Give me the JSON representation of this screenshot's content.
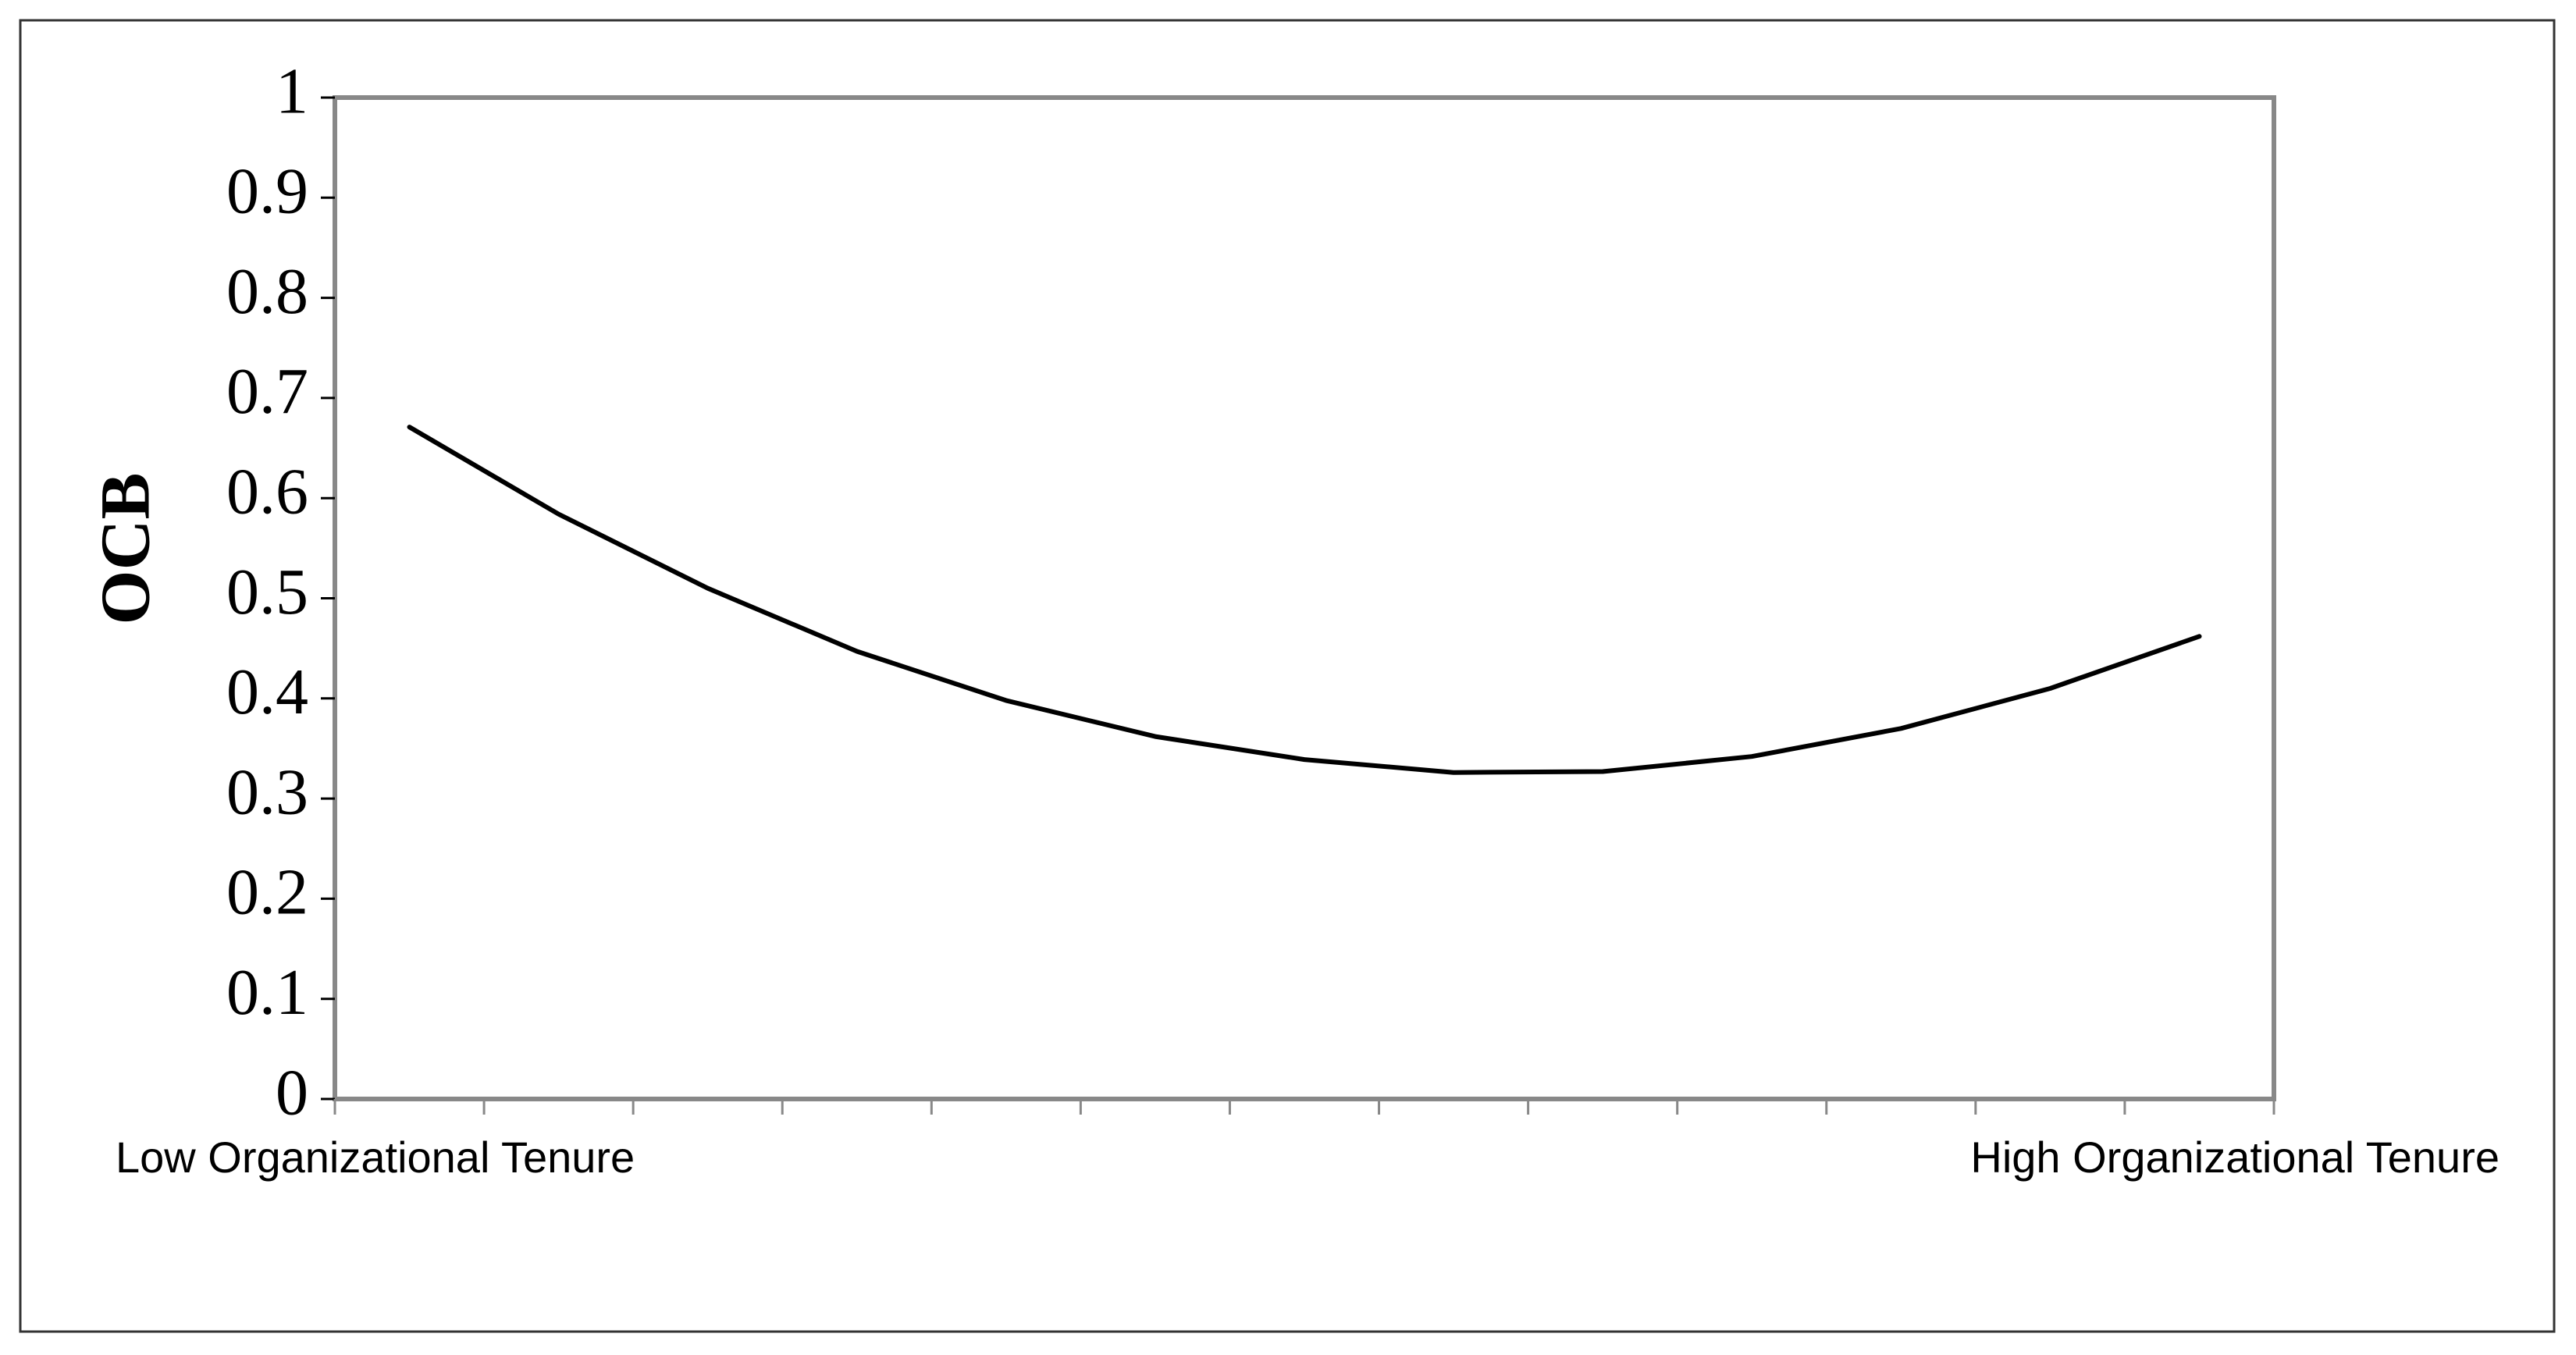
{
  "chart_data": {
    "type": "line",
    "y_label": "OCB",
    "categories": [
      "Low Organizational Tenure",
      null,
      null,
      null,
      null,
      null,
      null,
      null,
      null,
      null,
      null,
      null,
      "High Organizational Tenure"
    ],
    "series": [
      {
        "color": "#000000",
        "values": [
          0.671,
          0.584,
          0.51,
          0.447,
          0.398,
          0.362,
          0.339,
          0.326,
          0.327,
          0.342,
          0.37,
          0.41,
          0.462
        ]
      }
    ],
    "ylim": [
      0,
      1
    ],
    "yticks": [
      0,
      0.1,
      0.2,
      0.3,
      0.4,
      0.5,
      0.6,
      0.7,
      0.8,
      0.9,
      1
    ],
    "grid": false
  }
}
